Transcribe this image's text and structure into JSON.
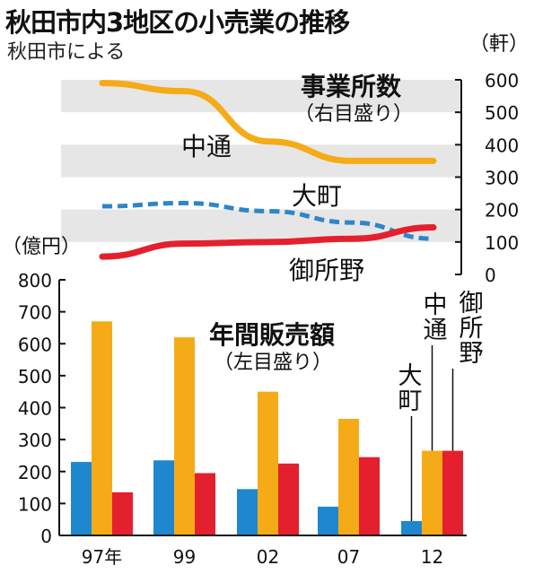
{
  "title": "秋田市内3地区の小売業の推移",
  "subtitle": "秋田市による",
  "chart_data": [
    {
      "type": "line",
      "title": "事業所数",
      "scale_note": "（右目盛り）",
      "unit": "（軒）",
      "x": [
        "97",
        "99",
        "02",
        "07",
        "12"
      ],
      "ylim": [
        0,
        600
      ],
      "y_ticks": [
        "600",
        "500",
        "400",
        "300",
        "200",
        "100",
        "0"
      ],
      "series": [
        {
          "name": "中通",
          "values": [
            590,
            565,
            410,
            350,
            350
          ],
          "color": "#f5ab18",
          "style": "solid"
        },
        {
          "name": "大町",
          "values": [
            210,
            220,
            195,
            160,
            110
          ],
          "color": "#2e86c8",
          "style": "dashed"
        },
        {
          "name": "御所野",
          "values": [
            55,
            95,
            100,
            110,
            145
          ],
          "color": "#e4202e",
          "style": "solid"
        }
      ]
    },
    {
      "type": "bar",
      "title": "年間販売額",
      "scale_note": "（左目盛り）",
      "unit": "（億円）",
      "categories": [
        "97年",
        "99",
        "02",
        "07",
        "12"
      ],
      "ylim": [
        0,
        800
      ],
      "y_ticks": [
        "800",
        "700",
        "600",
        "500",
        "400",
        "300",
        "200",
        "100",
        "0"
      ],
      "series": [
        {
          "name": "大町",
          "values": [
            230,
            235,
            145,
            90,
            45
          ],
          "color": "#1f87cf"
        },
        {
          "name": "中通",
          "values": [
            670,
            620,
            450,
            365,
            265
          ],
          "color": "#f5ab18"
        },
        {
          "name": "御所野",
          "values": [
            135,
            195,
            225,
            245,
            265
          ],
          "color": "#e4202e"
        }
      ],
      "series_labels": [
        "大町",
        "中通",
        "御所野"
      ]
    }
  ]
}
